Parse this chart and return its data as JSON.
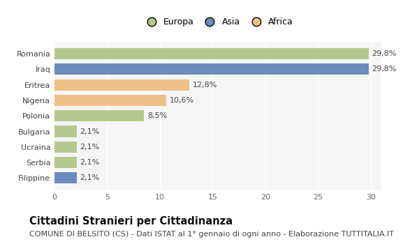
{
  "countries": [
    "Romania",
    "Iraq",
    "Eritrea",
    "Nigeria",
    "Polonia",
    "Bulgaria",
    "Ucraina",
    "Serbia",
    "Filippine"
  ],
  "values": [
    29.8,
    29.8,
    12.8,
    10.6,
    8.5,
    2.1,
    2.1,
    2.1,
    2.1
  ],
  "labels": [
    "29,8%",
    "29,8%",
    "12,8%",
    "10,6%",
    "8,5%",
    "2,1%",
    "2,1%",
    "2,1%",
    "2,1%"
  ],
  "colors": [
    "#b5c98e",
    "#6b8cba",
    "#f0c08a",
    "#f0c08a",
    "#b5c98e",
    "#b5c98e",
    "#b5c98e",
    "#b5c98e",
    "#6b8cba"
  ],
  "continent": [
    "Europa",
    "Asia",
    "Africa",
    "Africa",
    "Europa",
    "Europa",
    "Europa",
    "Europa",
    "Asia"
  ],
  "legend_labels": [
    "Europa",
    "Asia",
    "Africa"
  ],
  "legend_colors": [
    "#b5c98e",
    "#6b8cba",
    "#f0c08a"
  ],
  "title_bold": "Cittadini Stranieri per Cittadinanza",
  "subtitle": "COMUNE DI BELSITO (CS) - Dati ISTAT al 1° gennaio di ogni anno - Elaborazione TUTTITALIA.IT",
  "xlim": [
    0,
    31
  ],
  "xticks": [
    0,
    5,
    10,
    15,
    20,
    25,
    30
  ],
  "background_color": "#ffffff",
  "plot_bg_color": "#f5f5f5",
  "grid_color": "#ffffff",
  "bar_height": 0.72,
  "title_fontsize": 10.5,
  "subtitle_fontsize": 8,
  "label_fontsize": 8,
  "tick_fontsize": 8,
  "legend_fontsize": 9
}
